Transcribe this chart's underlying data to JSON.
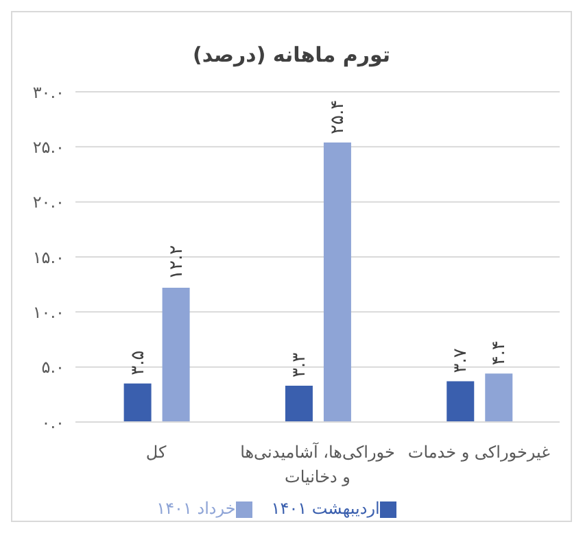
{
  "chart_data": {
    "type": "bar",
    "title": "تورم ماهانه (درصد)",
    "categories": [
      "کل",
      "خوراکی‌ها، آشامیدنی‌ها و دخانیات",
      "غیرخوراکی و خدمات"
    ],
    "series": [
      {
        "name": "اردیبهشت ۱۴۰۱",
        "color": "#3a5fae",
        "values": [
          3.5,
          3.3,
          3.7
        ],
        "value_labels": [
          "۳.۵",
          "۳.۳",
          "۳.۷"
        ]
      },
      {
        "name": "خرداد ۱۴۰۱",
        "color": "#8ea4d6",
        "values": [
          12.2,
          25.4,
          4.4
        ],
        "value_labels": [
          "۱۲.۲",
          "۲۵.۴",
          "۴.۴"
        ]
      }
    ],
    "ylim": [
      0,
      30
    ],
    "yticks": [
      {
        "value": 0,
        "label": "۰.۰"
      },
      {
        "value": 5,
        "label": "۵.۰"
      },
      {
        "value": 10,
        "label": "۱۰.۰"
      },
      {
        "value": 15,
        "label": "۱۵.۰"
      },
      {
        "value": 20,
        "label": "۲۰.۰"
      },
      {
        "value": 25,
        "label": "۲۵.۰"
      },
      {
        "value": 30,
        "label": "۳۰.۰"
      }
    ],
    "grid": "y",
    "legend": "bottom"
  }
}
